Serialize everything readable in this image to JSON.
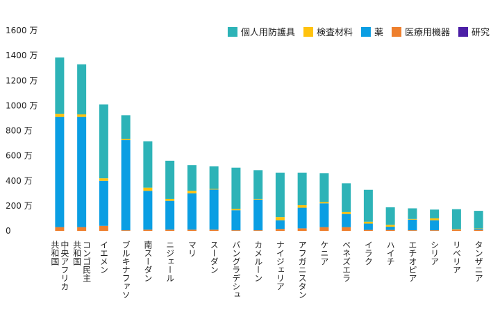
{
  "chart_data": {
    "type": "bar",
    "stacked": true,
    "orientation": "vertical",
    "categories": [
      [
        "中央アフリカ",
        "共和国"
      ],
      [
        "コンゴ民主",
        "共和国"
      ],
      [
        "イエメン"
      ],
      [
        "ブルキナファソ"
      ],
      [
        "南スーダン"
      ],
      [
        "ニジェール"
      ],
      [
        "マリ"
      ],
      [
        "スーダン"
      ],
      [
        "バングラデシュ"
      ],
      [
        "カメルーン"
      ],
      [
        "ナイジェリア"
      ],
      [
        "アフガニスタン"
      ],
      [
        "ケニア"
      ],
      [
        "ベネズエラ"
      ],
      [
        "イラク"
      ],
      [
        "ハイチ"
      ],
      [
        "エチオピア"
      ],
      [
        "シリア"
      ],
      [
        "リベリア"
      ],
      [
        "タンザニア"
      ]
    ],
    "series": [
      {
        "name": "医療用機器",
        "color": "#ee7f2d",
        "values": [
          30,
          30,
          40,
          5,
          10,
          10,
          10,
          10,
          5,
          5,
          15,
          20,
          30,
          30,
          8,
          8,
          5,
          5,
          10,
          8
        ]
      },
      {
        "name": "薬",
        "color": "#0a9ee3",
        "values": [
          880,
          880,
          360,
          720,
          310,
          230,
          290,
          320,
          160,
          245,
          70,
          165,
          190,
          105,
          50,
          25,
          85,
          80,
          0,
          8
        ]
      },
      {
        "name": "検査材料",
        "color": "#ffc20e",
        "values": [
          25,
          20,
          20,
          8,
          25,
          15,
          20,
          5,
          10,
          5,
          25,
          20,
          10,
          15,
          15,
          15,
          5,
          15,
          3,
          3
        ]
      },
      {
        "name": "個人用防護具",
        "color": "#2db3b7",
        "values": [
          450,
          400,
          590,
          190,
          370,
          305,
          205,
          180,
          330,
          230,
          355,
          260,
          230,
          230,
          255,
          140,
          85,
          70,
          160,
          141
        ]
      },
      {
        "name": "研究",
        "color": "#4b1fa6",
        "values": [
          0,
          0,
          0,
          0,
          0,
          0,
          0,
          0,
          0,
          0,
          0,
          0,
          0,
          0,
          0,
          0,
          0,
          0,
          0,
          0
        ]
      }
    ],
    "legend": {
      "position": "top-right",
      "order": [
        "個人用防護具",
        "検査材料",
        "薬",
        "医療用機器",
        "研究"
      ]
    },
    "y_axis": {
      "ylim": [
        0,
        1600
      ],
      "tick_values": [
        0,
        200,
        400,
        600,
        800,
        1000,
        1200,
        1400,
        1600
      ],
      "tick_labels": [
        "0",
        "200 万",
        "400 万",
        "600 万",
        "800 万",
        "1000 万",
        "1200 万",
        "1400 万",
        "1600 万"
      ]
    },
    "grid": false,
    "title": "",
    "xlabel": "",
    "ylabel": ""
  }
}
